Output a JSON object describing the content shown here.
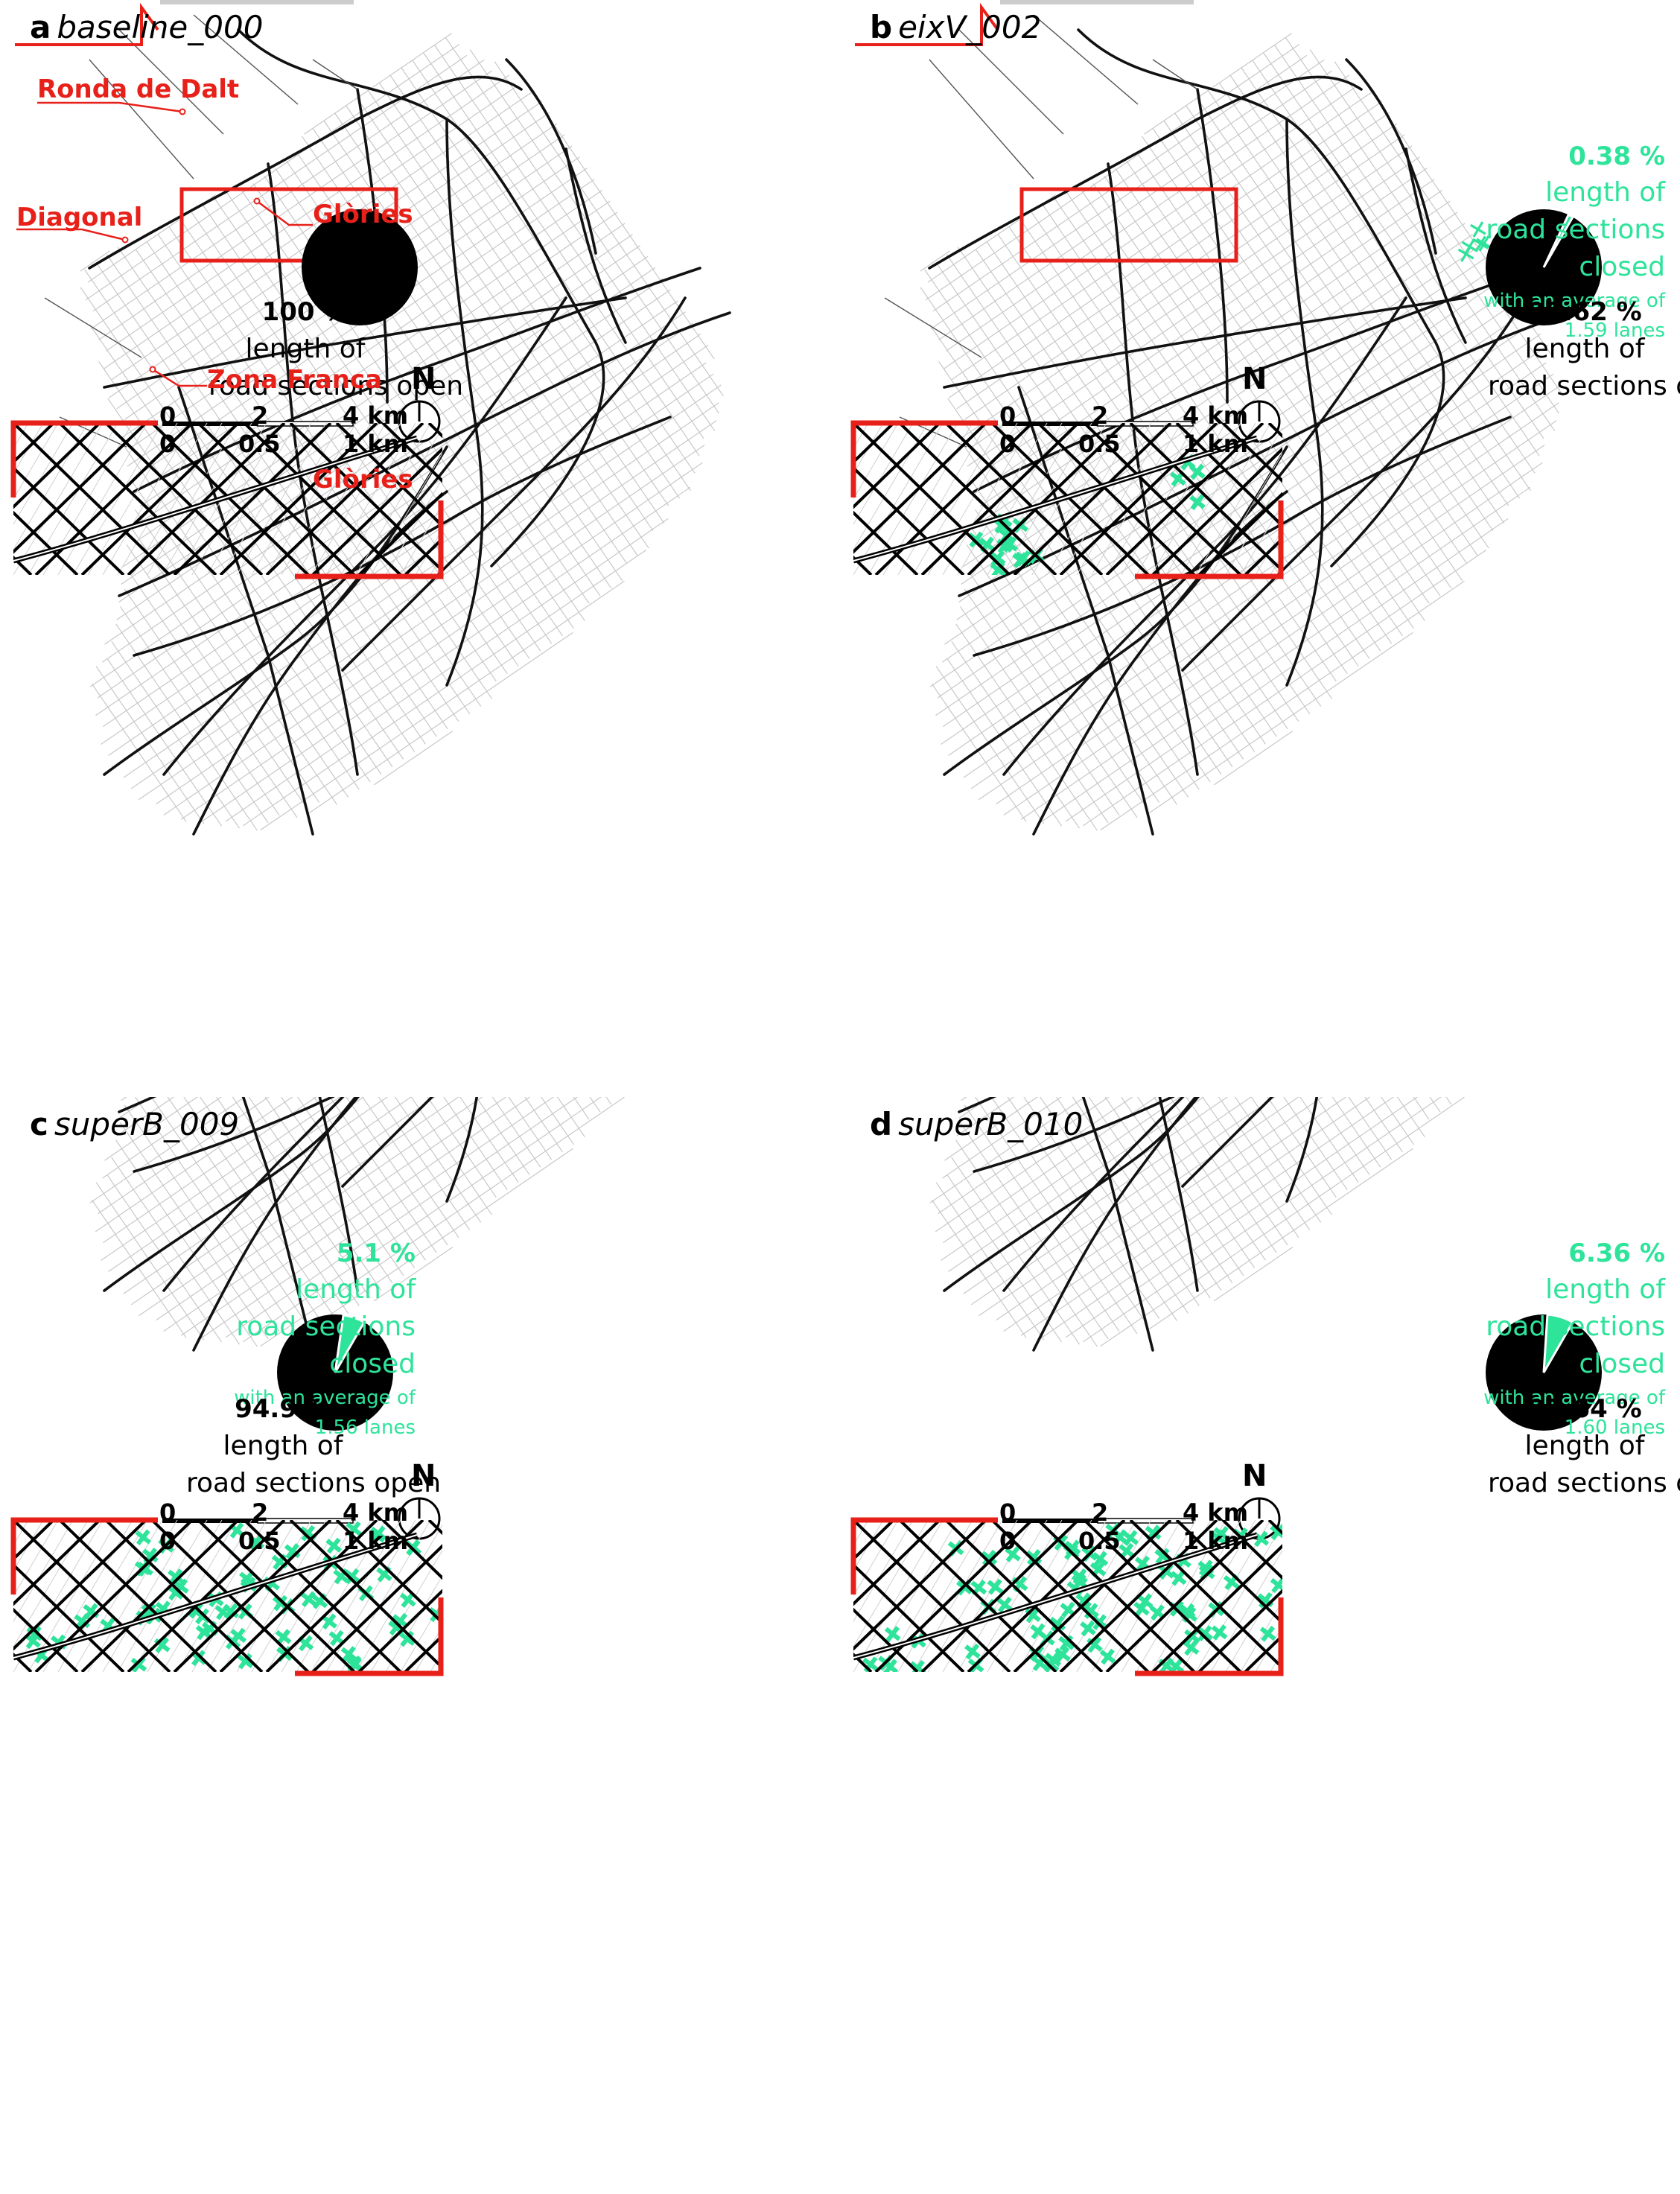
{
  "colors": {
    "accent": "#e8201a",
    "closed": "#2ee39a",
    "road_major": "#111111",
    "road_minor": "#c8c8c8"
  },
  "panels": [
    {
      "letter": "a",
      "name": "baseline_000",
      "closed_pct": "",
      "closed_lines": [],
      "avg_lanes": [],
      "open_pct": "100 %",
      "open_lines": [
        "length of",
        "road sections open"
      ],
      "closed_fraction": 0,
      "zoom_density": 0
    },
    {
      "letter": "b",
      "name": "eixV_002",
      "closed_pct": "0.38 %",
      "closed_lines": [
        "length of",
        "road sections",
        "closed"
      ],
      "avg_lanes": [
        "with an average of",
        "1.59 lanes"
      ],
      "open_pct": "99.62 %",
      "open_lines": [
        "length of",
        "road sections open"
      ],
      "closed_fraction": 0.0038,
      "zoom_density": 0.12
    },
    {
      "letter": "c",
      "name": "superB_009",
      "closed_pct": "5.1 %",
      "closed_lines": [
        "length of",
        "road sections",
        "closed"
      ],
      "avg_lanes": [
        "with an average of",
        "1.56 lanes"
      ],
      "open_pct": "94.9 %",
      "open_lines": [
        "length of",
        "road sections open"
      ],
      "closed_fraction": 0.051,
      "zoom_density": 0.55
    },
    {
      "letter": "d",
      "name": "superB_010",
      "closed_pct": "6.36 %",
      "closed_lines": [
        "length of",
        "road sections",
        "closed"
      ],
      "avg_lanes": [
        "with an average of",
        "1.60 lanes"
      ],
      "open_pct": "93.64 %",
      "open_lines": [
        "length of",
        "road sections open"
      ],
      "closed_fraction": 0.0636,
      "zoom_density": 0.7
    }
  ],
  "place_labels": {
    "ronda": "Ronda de Dalt",
    "diagonal": "Diagonal",
    "glories": "Glòries",
    "zona": "Zona Franca"
  },
  "scale_bar": {
    "top": [
      "0",
      "2",
      "4 km"
    ],
    "bottom": [
      "0",
      "0.5",
      "1 km"
    ]
  },
  "north": "N"
}
